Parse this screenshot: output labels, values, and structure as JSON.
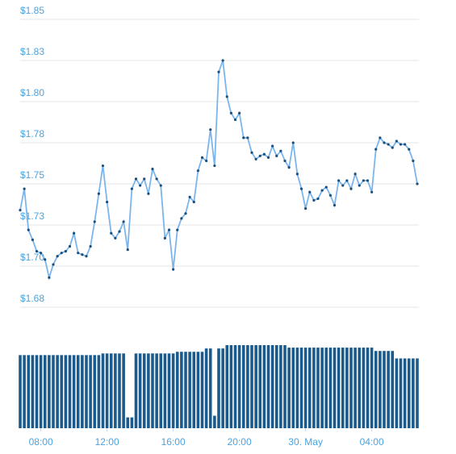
{
  "chart_data": {
    "type": "line",
    "x": [
      6.75,
      7,
      7.25,
      7.5,
      7.75,
      8,
      8.25,
      8.5,
      8.75,
      9,
      9.25,
      9.5,
      9.75,
      10,
      10.25,
      10.5,
      10.75,
      11,
      11.25,
      11.5,
      11.75,
      12,
      12.25,
      12.5,
      12.75,
      13,
      13.25,
      13.5,
      13.75,
      14,
      14.25,
      14.5,
      14.75,
      15,
      15.25,
      15.5,
      15.75,
      16,
      16.25,
      16.5,
      16.75,
      17,
      17.25,
      17.5,
      17.75,
      18,
      18.25,
      18.5,
      18.75,
      19,
      19.25,
      19.5,
      19.75,
      20,
      20.25,
      20.5,
      20.75,
      21,
      21.25,
      21.5,
      21.75,
      22,
      22.25,
      22.5,
      22.75,
      23,
      23.25,
      23.5,
      23.75,
      24,
      24.25,
      24.5,
      24.75,
      25,
      25.25,
      25.5,
      25.75,
      26,
      26.25,
      26.5,
      26.75,
      27,
      27.25,
      27.5,
      27.75,
      28,
      28.25,
      28.5,
      28.75,
      29,
      29.25,
      29.5,
      29.75,
      30,
      30.25,
      30.5,
      30.75
    ],
    "series": [
      {
        "color": "#7cb5ec",
        "values": [
          1.734,
          1.747,
          1.722,
          1.716,
          1.709,
          1.708,
          1.704,
          1.693,
          1.701,
          1.706,
          1.708,
          1.709,
          1.712,
          1.72,
          1.708,
          1.707,
          1.706,
          1.712,
          1.727,
          1.744,
          1.761,
          1.739,
          1.72,
          1.717,
          1.721,
          1.727,
          1.71,
          1.747,
          1.753,
          1.749,
          1.753,
          1.744,
          1.759,
          1.753,
          1.749,
          1.717,
          1.722,
          1.698,
          1.722,
          1.729,
          1.732,
          1.742,
          1.739,
          1.758,
          1.766,
          1.764,
          1.783,
          1.761,
          1.818,
          1.825,
          1.803,
          1.793,
          1.789,
          1.793,
          1.778,
          1.778,
          1.769,
          1.765,
          1.767,
          1.768,
          1.766,
          1.773,
          1.767,
          1.77,
          1.764,
          1.76,
          1.775,
          1.756,
          1.747,
          1.735,
          1.745,
          1.74,
          1.741,
          1.746,
          1.748,
          1.743,
          1.737,
          1.752,
          1.749,
          1.752,
          1.747,
          1.756,
          1.749,
          1.752,
          1.752,
          1.745,
          1.771,
          1.778,
          1.775,
          1.774,
          1.772,
          1.776,
          1.774,
          1.774,
          1.771,
          1.764,
          1.75
        ]
      },
      {
        "color": "#1b5a8c",
        "axis": "y2",
        "type": "bar",
        "values": [
          88,
          88,
          88,
          88,
          88,
          88,
          88,
          88,
          88,
          88,
          88,
          88,
          88,
          88,
          88,
          88,
          88,
          88,
          88,
          88,
          90,
          90,
          90,
          90,
          90,
          90,
          13,
          13,
          90,
          90,
          90,
          90,
          90,
          90,
          90,
          90,
          90,
          90,
          92,
          92,
          92,
          92,
          92,
          92,
          92,
          96,
          96,
          15,
          96,
          96,
          100,
          100,
          100,
          100,
          100,
          100,
          100,
          100,
          100,
          100,
          100,
          100,
          100,
          100,
          100,
          97,
          97,
          97,
          97,
          97,
          97,
          97,
          97,
          97,
          97,
          97,
          97,
          97,
          97,
          97,
          97,
          97,
          97,
          97,
          97,
          97,
          93,
          93,
          93,
          93,
          93,
          84,
          84,
          84,
          84,
          84,
          84
        ]
      }
    ],
    "xlim": [
      6.75,
      30.75
    ],
    "xticks": [
      {
        "value": 8,
        "label": "08:00"
      },
      {
        "value": 12,
        "label": "12:00"
      },
      {
        "value": 16,
        "label": "16:00"
      },
      {
        "value": 20,
        "label": "20:00"
      },
      {
        "value": 24,
        "label": "30. May"
      },
      {
        "value": 28,
        "label": "04:00"
      }
    ],
    "ylim": [
      1.675,
      1.85
    ],
    "yticks": [
      {
        "value": 1.85,
        "label": "$1.85"
      },
      {
        "value": 1.825,
        "label": "$1.83"
      },
      {
        "value": 1.8,
        "label": "$1.80"
      },
      {
        "value": 1.775,
        "label": "$1.78"
      },
      {
        "value": 1.75,
        "label": "$1.75"
      },
      {
        "value": 1.725,
        "label": "$1.73"
      },
      {
        "value": 1.7,
        "label": "$1.70"
      },
      {
        "value": 1.675,
        "label": "$1.68"
      }
    ],
    "y2lim": [
      0,
      100
    ],
    "grid": true
  }
}
